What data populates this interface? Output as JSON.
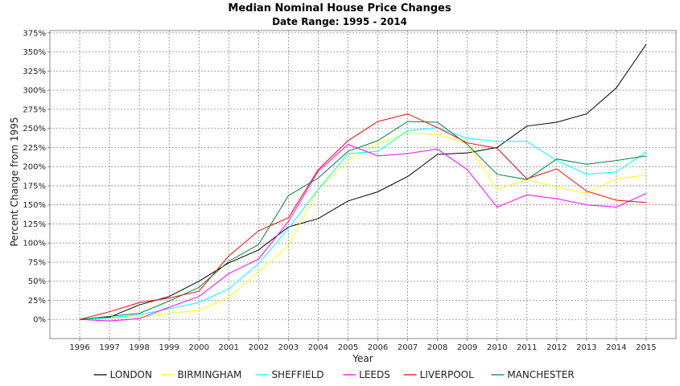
{
  "chart_data": {
    "type": "line",
    "title": "Median Nominal House Price Changes",
    "subtitle": "Date Range: 1995 - 2014",
    "xlabel": "Year",
    "ylabel": "Percent Change from 1995",
    "x": [
      1996,
      1997,
      1998,
      1999,
      2000,
      2001,
      2002,
      2003,
      2004,
      2005,
      2006,
      2007,
      2008,
      2009,
      2010,
      2011,
      2012,
      2013,
      2014,
      2015
    ],
    "xlim": [
      1995,
      2016
    ],
    "ylim": [
      -25,
      378
    ],
    "y_ticks": [
      0,
      25,
      50,
      75,
      100,
      125,
      150,
      175,
      200,
      225,
      250,
      275,
      300,
      325,
      350,
      375
    ],
    "y_tick_suffix": "%",
    "grid": true,
    "legend_position": "bottom",
    "series": [
      {
        "name": "LONDON",
        "color": "#000000",
        "values": [
          0,
          3,
          19,
          30,
          50,
          74,
          91,
          121,
          132,
          155,
          167,
          187,
          216,
          218,
          225,
          253,
          258,
          269,
          303,
          360
        ]
      },
      {
        "name": "BIRMINGHAM",
        "color": "#ffff00",
        "values": [
          0,
          2,
          3,
          8,
          12,
          29,
          62,
          97,
          170,
          208,
          230,
          244,
          242,
          230,
          170,
          183,
          173,
          165,
          184,
          189
        ]
      },
      {
        "name": "SHEFFIELD",
        "color": "#00ffff",
        "values": [
          0,
          2,
          6,
          14,
          22,
          40,
          73,
          119,
          170,
          217,
          220,
          247,
          251,
          237,
          233,
          233,
          208,
          190,
          193,
          219
        ]
      },
      {
        "name": "LEEDS",
        "color": "#ff00ff",
        "values": [
          0,
          -2,
          1,
          16,
          30,
          60,
          79,
          128,
          194,
          229,
          214,
          217,
          223,
          196,
          147,
          163,
          158,
          150,
          147,
          165
        ]
      },
      {
        "name": "LIVERPOOL",
        "color": "#ff0000",
        "values": [
          0,
          10,
          22,
          28,
          37,
          83,
          116,
          133,
          196,
          234,
          259,
          269,
          251,
          231,
          224,
          184,
          197,
          168,
          156,
          153
        ]
      },
      {
        "name": "MANCHESTER",
        "color": "#008040",
        "values": [
          0,
          4,
          8,
          24,
          42,
          76,
          98,
          162,
          185,
          220,
          234,
          259,
          258,
          229,
          190,
          183,
          210,
          203,
          208,
          214
        ]
      }
    ]
  }
}
